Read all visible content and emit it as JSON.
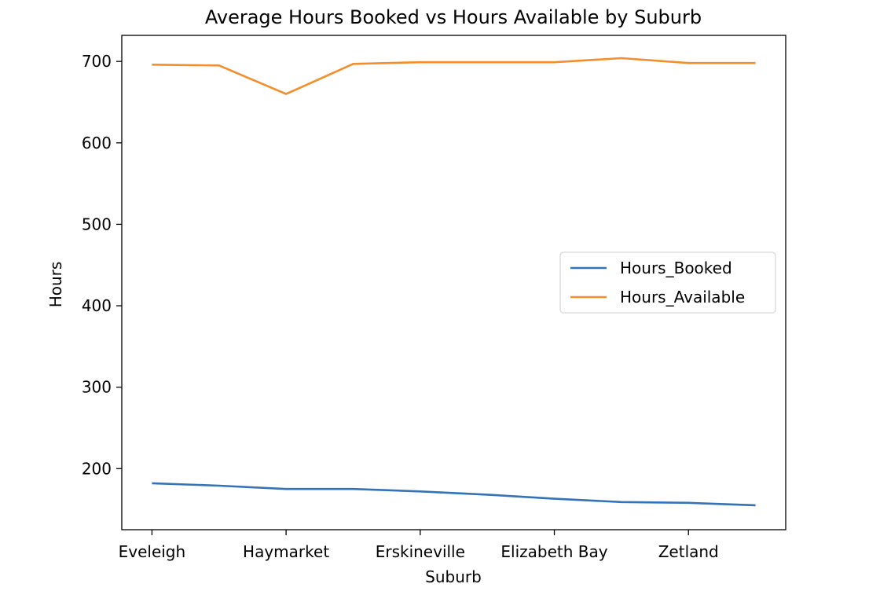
{
  "chart_data": {
    "type": "line",
    "title": "Average Hours Booked vs Hours Available by Suburb",
    "xlabel": "Suburb",
    "ylabel": "Hours",
    "ylim": [
      125,
      732
    ],
    "yticks": [
      200,
      300,
      400,
      500,
      600,
      700
    ],
    "xtick_labels": [
      "Eveleigh",
      "Haymarket",
      "Erskineville",
      "Elizabeth Bay",
      "Zetland"
    ],
    "xtick_positions": [
      0,
      2,
      4,
      6,
      8
    ],
    "x": [
      0,
      1,
      2,
      3,
      4,
      5,
      6,
      7,
      8,
      9
    ],
    "legend_position": "center-right",
    "grid": false,
    "series": [
      {
        "name": "Hours_Booked",
        "color": "#3274b5",
        "values": [
          182,
          179,
          175,
          175,
          172,
          168,
          163,
          159,
          158,
          155
        ]
      },
      {
        "name": "Hours_Available",
        "color": "#f28e2b",
        "values": [
          696,
          695,
          660,
          697,
          699,
          699,
          699,
          704,
          698,
          698
        ]
      }
    ]
  }
}
